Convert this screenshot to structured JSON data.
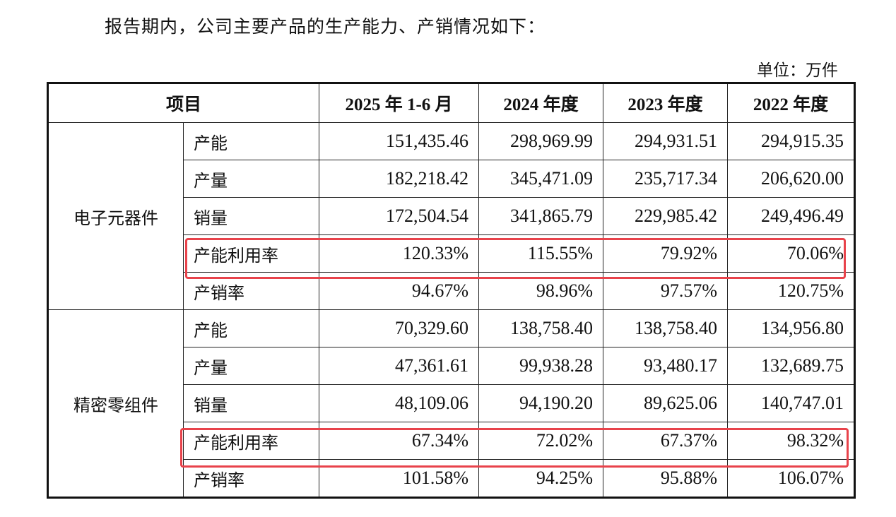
{
  "intro": "报告期内，公司主要产品的生产能力、产销情况如下：",
  "unit": "单位：万件",
  "headers": [
    "项目",
    "2025 年 1-6 月",
    "2024 年度",
    "2023 年度",
    "2022 年度"
  ],
  "groups": [
    {
      "name": "电子元器件",
      "rows": [
        {
          "label": "产能",
          "values": [
            "151,435.46",
            "298,969.99",
            "294,931.51",
            "294,915.35"
          ]
        },
        {
          "label": "产量",
          "values": [
            "182,218.42",
            "345,471.09",
            "235,717.34",
            "206,620.00"
          ]
        },
        {
          "label": "销量",
          "values": [
            "172,504.54",
            "341,865.79",
            "229,985.42",
            "249,496.49"
          ]
        },
        {
          "label": "产能利用率",
          "values": [
            "120.33%",
            "115.55%",
            "79.92%",
            "70.06%"
          ],
          "highlighted": true
        },
        {
          "label": "产销率",
          "values": [
            "94.67%",
            "98.96%",
            "97.57%",
            "120.75%"
          ]
        }
      ]
    },
    {
      "name": "精密零组件",
      "rows": [
        {
          "label": "产能",
          "values": [
            "70,329.60",
            "138,758.40",
            "138,758.40",
            "134,956.80"
          ]
        },
        {
          "label": "产量",
          "values": [
            "47,361.61",
            "99,938.28",
            "93,480.17",
            "132,689.75"
          ]
        },
        {
          "label": "销量",
          "values": [
            "48,109.06",
            "94,190.20",
            "89,625.06",
            "140,747.01"
          ]
        },
        {
          "label": "产能利用率",
          "values": [
            "67.34%",
            "72.02%",
            "67.37%",
            "98.32%"
          ],
          "highlighted": true
        },
        {
          "label": "产销率",
          "values": [
            "101.58%",
            "94.25%",
            "95.88%",
            "106.07%"
          ]
        }
      ]
    }
  ],
  "highlight_color": "#e8434b"
}
